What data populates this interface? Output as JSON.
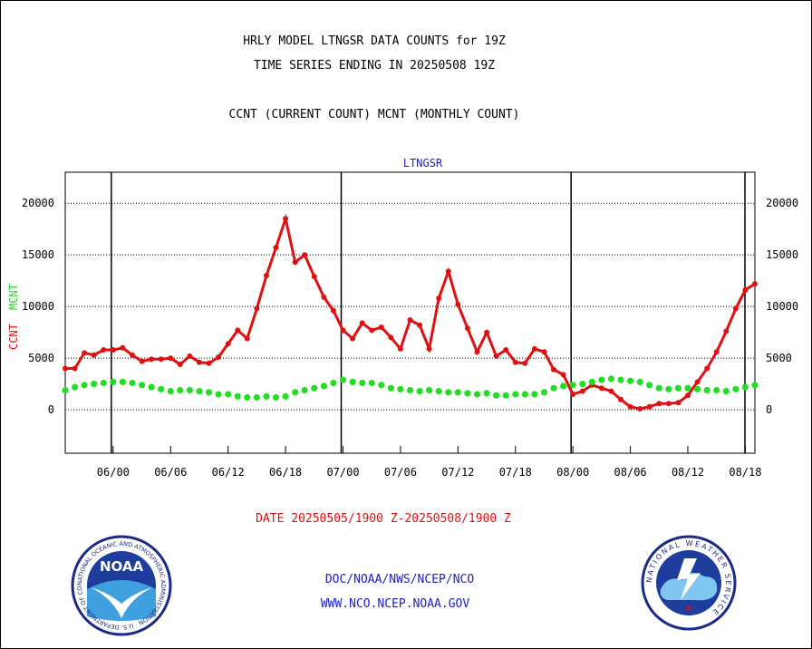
{
  "header": {
    "title1": "HRLY MODEL LTNGSR DATA COUNTS for 19Z",
    "title2": "TIME SERIES ENDING IN 20250508 19Z",
    "title3": "CCNT (CURRENT COUNT) MCNT (MONTHLY COUNT)"
  },
  "footer": {
    "date_range": "DATE 20250505/1900 Z-20250508/1900 Z",
    "org_path": "DOC/NOAA/NWS/NCEP/NCO",
    "url": "WWW.NCO.NCEP.NOAA.GOV"
  },
  "logos": {
    "noaa_text": "NOAA",
    "noaa_ring": "NATIONAL OCEANIC AND ATMOSPHERIC ADMINISTRATION · U.S. DEPARTMENT OF COMMERCE",
    "nws_ring": "NATIONAL WEATHER SERVICE"
  },
  "colors": {
    "ccnt": "#e01010",
    "mcnt": "#22dd22",
    "title": "#000000",
    "footer_red": "#e01010",
    "footer_blue": "#2020c0"
  },
  "chart_data": {
    "type": "line",
    "title": "LTNGSR",
    "ylabel_series": [
      "CCNT",
      "MCNT"
    ],
    "ylim": [
      -4200,
      23000
    ],
    "yticks": [
      0,
      5000,
      10000,
      15000,
      20000
    ],
    "xticks": [
      "06/00",
      "06/06",
      "06/12",
      "06/18",
      "07/00",
      "07/06",
      "07/12",
      "07/18",
      "08/00",
      "08/06",
      "08/12",
      "08/18"
    ],
    "x_start": "05/19",
    "x_end": "08/19",
    "day_boundaries": [
      "06/00",
      "07/00",
      "08/00"
    ],
    "grid": true,
    "series": [
      {
        "name": "CCNT",
        "values": [
          4000,
          4000,
          5500,
          5300,
          5800,
          5800,
          6000,
          5300,
          4700,
          4900,
          4900,
          5000,
          4400,
          5200,
          4600,
          4500,
          5100,
          6400,
          7700,
          6900,
          9800,
          13000,
          15700,
          18500,
          14300,
          15000,
          12900,
          10900,
          9600,
          7700,
          6900,
          8400,
          7700,
          8000,
          7000,
          5900,
          8700,
          8200,
          5900,
          10800,
          13400,
          10200,
          7900,
          5600,
          7500,
          5200,
          5800,
          4600,
          4500,
          5900,
          5600,
          3900,
          3400,
          1500,
          1800,
          2400,
          2100,
          1800,
          1000,
          300,
          100,
          300,
          600,
          600,
          700,
          1400,
          2700,
          4000,
          5600,
          7600,
          9800,
          11600,
          12200
        ]
      },
      {
        "name": "MCNT",
        "values": [
          1900,
          2200,
          2400,
          2500,
          2600,
          2700,
          2700,
          2600,
          2400,
          2200,
          2000,
          1800,
          1900,
          1900,
          1800,
          1700,
          1500,
          1500,
          1300,
          1200,
          1200,
          1300,
          1200,
          1300,
          1700,
          1900,
          2100,
          2300,
          2600,
          2900,
          2700,
          2600,
          2600,
          2400,
          2100,
          2000,
          1900,
          1800,
          1900,
          1800,
          1700,
          1700,
          1600,
          1500,
          1600,
          1400,
          1400,
          1500,
          1500,
          1500,
          1700,
          2100,
          2300,
          2400,
          2500,
          2700,
          2900,
          3000,
          2900,
          2800,
          2700,
          2400,
          2100,
          2000,
          2100,
          2100,
          2000,
          1900,
          1900,
          1800,
          2000,
          2200,
          2400
        ]
      }
    ]
  }
}
